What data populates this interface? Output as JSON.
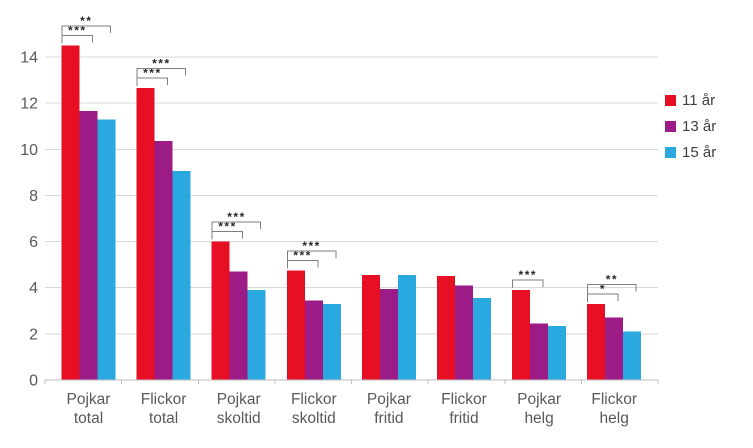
{
  "chart_data": {
    "type": "bar",
    "title": "",
    "xlabel": "",
    "ylabel": "",
    "categories": [
      "Pojkar total",
      "Flickor total",
      "Pojkar skoltid",
      "Flickor skoltid",
      "Pojkar fritid",
      "Flickor fritid",
      "Pojkar helg",
      "Flickor helg"
    ],
    "series": [
      {
        "name": "11 år",
        "color": "#e60f23",
        "values": [
          14.5,
          12.65,
          6.0,
          4.75,
          4.55,
          4.5,
          3.9,
          3.3
        ]
      },
      {
        "name": "13 år",
        "color": "#9b1b87",
        "values": [
          11.65,
          10.35,
          4.7,
          3.45,
          3.95,
          4.1,
          2.45,
          2.7
        ]
      },
      {
        "name": "15 år",
        "color": "#29a9e0",
        "values": [
          11.3,
          9.05,
          3.9,
          3.3,
          4.55,
          3.55,
          2.35,
          2.1
        ]
      }
    ],
    "y_ticks": [
      0,
      2,
      4,
      6,
      8,
      10,
      12,
      14
    ],
    "ylim": [
      0,
      15.5
    ],
    "grid": true,
    "legend_position": "right",
    "annotations": [
      {
        "category": 0,
        "brackets": [
          {
            "from": 0,
            "to": 1,
            "label": "***"
          },
          {
            "from": 0,
            "to": 2,
            "label": "**"
          }
        ]
      },
      {
        "category": 1,
        "brackets": [
          {
            "from": 0,
            "to": 1,
            "label": "***"
          },
          {
            "from": 0,
            "to": 2,
            "label": "***"
          }
        ]
      },
      {
        "category": 2,
        "brackets": [
          {
            "from": 0,
            "to": 1,
            "label": "***"
          },
          {
            "from": 0,
            "to": 2,
            "label": "***"
          }
        ]
      },
      {
        "category": 3,
        "brackets": [
          {
            "from": 0,
            "to": 1,
            "label": "***"
          },
          {
            "from": 0,
            "to": 2,
            "label": "***"
          }
        ]
      },
      {
        "category": 6,
        "brackets": [
          {
            "from": 0,
            "to": 1,
            "label": "***"
          }
        ]
      },
      {
        "category": 7,
        "brackets": [
          {
            "from": 0,
            "to": 1,
            "label": "*"
          },
          {
            "from": 0,
            "to": 2,
            "label": "**"
          }
        ]
      }
    ]
  },
  "colors": {
    "background": "#ffffff",
    "gridline": "#d9d9d9",
    "axis": "#bfbfbf",
    "tick_label": "#595959",
    "bracket": "#7f7f7f",
    "annotation_text": "#262626",
    "legend_text": "#404040"
  }
}
